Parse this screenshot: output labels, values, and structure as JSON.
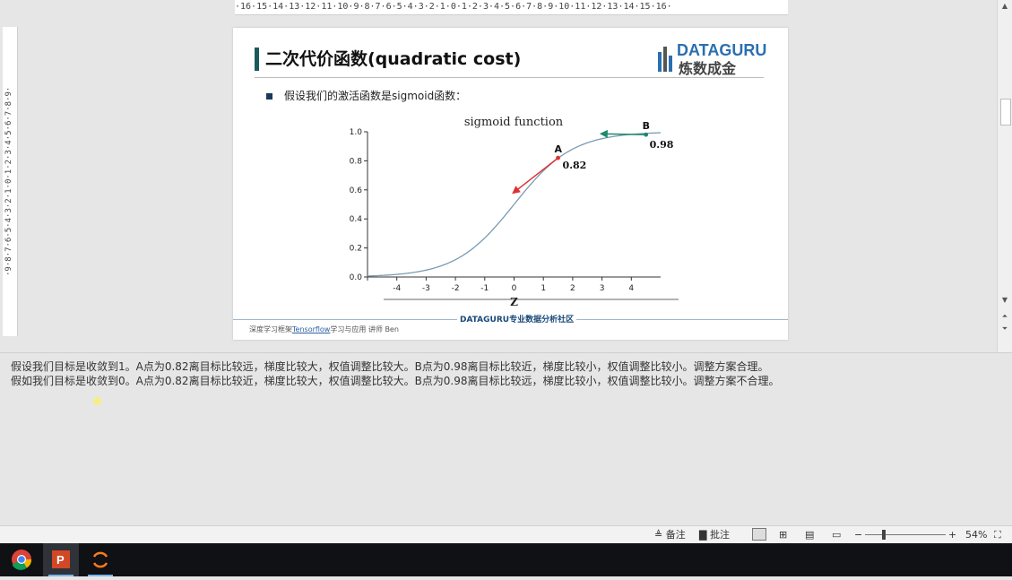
{
  "ruler": {
    "top_text": "·16·15·14·13·12·11·10·9·8·7·6·5·4·3·2·1·0·1·2·3·4·5·6·7·8·9·10·11·12·13·14·15·16·",
    "left_text": "·9·8·7·6·5·4·3·2·1·0·1·2·3·4·5·6·7·8·9·"
  },
  "slide": {
    "title": "二次代价函数(quadratic cost)",
    "logo_top": "DATAGURU",
    "logo_bottom": "炼数成金",
    "bullet": "假设我们的激活函数是sigmoid函数：",
    "footer_center": "DATAGURU专业数据分析社区",
    "footer_left_pre": "深度学习框架",
    "footer_left_link": "Tensorflow",
    "footer_left_post": "学习与应用  讲师 Ben"
  },
  "chart_data": {
    "type": "line",
    "title": "sigmoid function",
    "xlabel": "Z",
    "ylabel": "",
    "xlim": [
      -5,
      5
    ],
    "ylim": [
      0,
      1
    ],
    "x_ticks": [
      -4,
      -3,
      -2,
      -1,
      0,
      1,
      2,
      3,
      4
    ],
    "y_ticks": [
      "0.0",
      "0.2",
      "0.4",
      "0.6",
      "0.8",
      "1.0"
    ],
    "series": [
      {
        "function": "sigmoid",
        "color": "#7a9cb3"
      }
    ],
    "points": [
      {
        "label": "A",
        "x": 1.5,
        "y": 0.82,
        "value_label": "0.82",
        "color": "#d33"
      },
      {
        "label": "B",
        "x": 4.5,
        "y": 0.98,
        "value_label": "0.98",
        "color": "#1f8a6a"
      }
    ],
    "arrow_colors": {
      "A": "#d33",
      "B": "#1f8a6a"
    }
  },
  "notes": {
    "line1": "假设我们目标是收敛到1。A点为0.82离目标比较远，梯度比较大，权值调整比较大。B点为0.98离目标比较近，梯度比较小，权值调整比较小。调整方案合理。",
    "line2": "假如我们目标是收敛到0。A点为0.82离目标比较近，梯度比较大，权值调整比较大。B点为0.98离目标比较远，梯度比较小，权值调整比较小。调整方案不合理。"
  },
  "statusbar": {
    "notes_label": "备注",
    "comments_label": "批注",
    "zoom": "54%",
    "minus": "−",
    "plus": "+"
  },
  "taskbar": {
    "apps": [
      "chrome-icon",
      "powerpoint-icon",
      "app-icon"
    ]
  }
}
